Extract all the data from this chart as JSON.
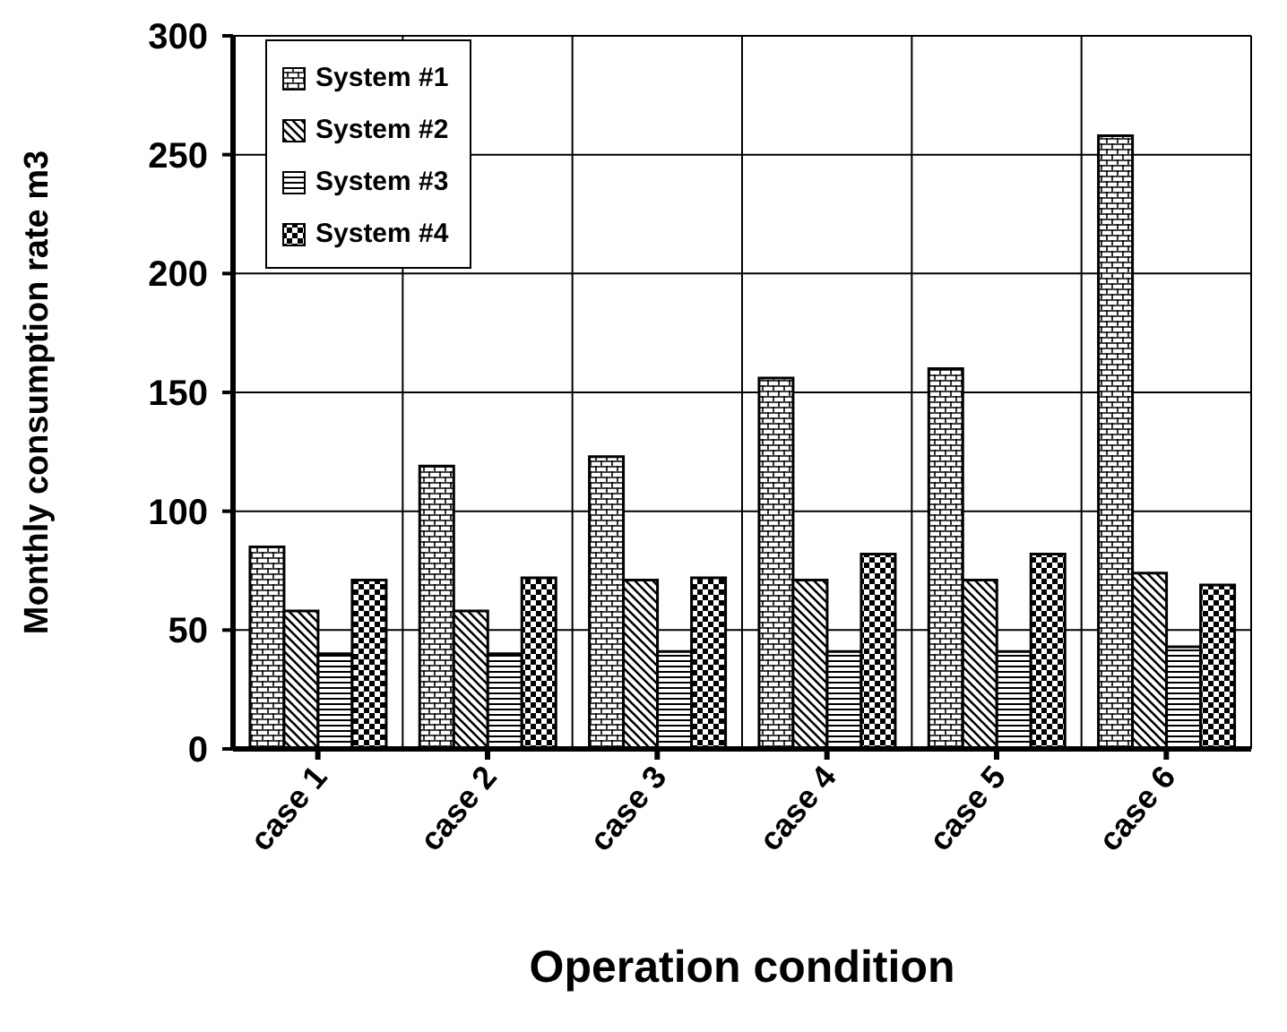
{
  "chart_data": {
    "type": "bar",
    "xlabel": "Operation condition",
    "ylabel": "Monthly consumption rate m3",
    "categories": [
      "case 1",
      "case 2",
      "case 3",
      "case 4",
      "case 5",
      "case 6"
    ],
    "series": [
      {
        "name": "System #1",
        "color": "#000000",
        "values": [
          85,
          119,
          123,
          156,
          160,
          258
        ]
      },
      {
        "name": "System #2",
        "color": "#000000",
        "values": [
          58,
          58,
          71,
          71,
          71,
          74
        ]
      },
      {
        "name": "System #3",
        "color": "#000000",
        "values": [
          40,
          40,
          41,
          41,
          41,
          43
        ]
      },
      {
        "name": "System #4",
        "color": "#000000",
        "values": [
          71,
          72,
          72,
          82,
          82,
          69
        ]
      }
    ],
    "ylim": [
      0,
      300
    ],
    "yticks": [
      0,
      50,
      100,
      150,
      200,
      250,
      300
    ],
    "grid": true,
    "legend": "top left"
  }
}
